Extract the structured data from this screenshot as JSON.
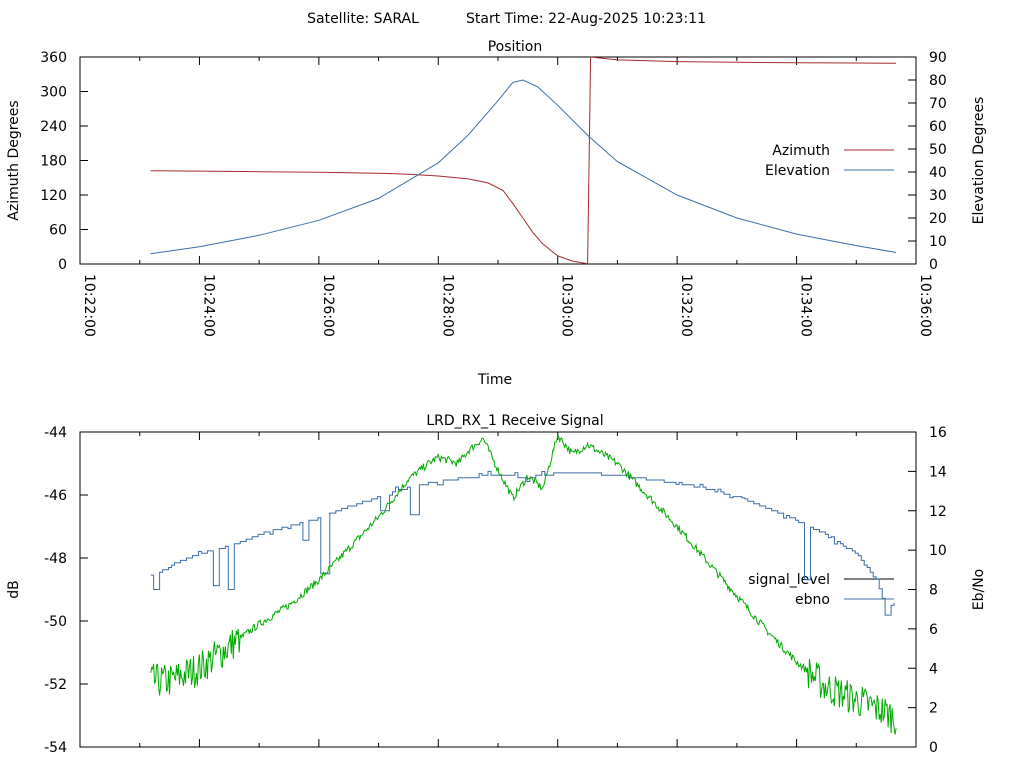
{
  "header": {
    "satellite": "Satellite: SARAL",
    "start_time": "Start Time: 22-Aug-2025 10:23:11"
  },
  "chart_data": [
    {
      "id": "position",
      "type": "line",
      "title": "Position",
      "xlabel": "Time",
      "ylabel": "Azimuth Degrees",
      "y2label": "Elevation Degrees",
      "xlim": [
        "10:22:00",
        "10:36:00"
      ],
      "ylim": [
        0,
        360
      ],
      "y2lim": [
        0,
        90
      ],
      "x_ticks": [
        "10:22:00",
        "10:24:00",
        "10:26:00",
        "10:28:00",
        "10:30:00",
        "10:32:00",
        "10:34:00",
        "10:36:00"
      ],
      "y_ticks": [
        "0",
        "60",
        "120",
        "180",
        "240",
        "300",
        "360"
      ],
      "y2_ticks": [
        "0",
        "10",
        "20",
        "30",
        "40",
        "50",
        "60",
        "70",
        "80",
        "90"
      ],
      "grid": false,
      "legend": "right",
      "series": [
        {
          "name": "Azimuth",
          "axis": "left",
          "color": "#a52a2a",
          "points": [
            [
              "10:23:11",
              162
            ],
            [
              "10:24:00",
              161.5
            ],
            [
              "10:25:00",
              160.5
            ],
            [
              "10:26:00",
              159.5
            ],
            [
              "10:27:00",
              158
            ],
            [
              "10:27:30",
              156
            ],
            [
              "10:28:00",
              153
            ],
            [
              "10:28:30",
              148
            ],
            [
              "10:28:50",
              141
            ],
            [
              "10:29:05",
              128
            ],
            [
              "10:29:15",
              105
            ],
            [
              "10:29:25",
              80
            ],
            [
              "10:29:35",
              55
            ],
            [
              "10:29:45",
              35
            ],
            [
              "10:30:00",
              14
            ],
            [
              "10:30:15",
              5
            ],
            [
              "10:30:30",
              0.5
            ],
            [
              "10:30:33",
              360
            ],
            [
              "10:31:00",
              355
            ],
            [
              "10:32:00",
              352
            ],
            [
              "10:33:00",
              351
            ],
            [
              "10:34:00",
              350
            ],
            [
              "10:35:00",
              349.5
            ],
            [
              "10:35:40",
              349
            ]
          ]
        },
        {
          "name": "Elevation",
          "axis": "right",
          "color": "#3b6fa8",
          "points": [
            [
              "10:23:11",
              4.5
            ],
            [
              "10:24:00",
              7.5
            ],
            [
              "10:25:00",
              12.5
            ],
            [
              "10:26:00",
              19
            ],
            [
              "10:27:00",
              28.5
            ],
            [
              "10:28:00",
              44
            ],
            [
              "10:28:30",
              56
            ],
            [
              "10:29:00",
              71
            ],
            [
              "10:29:15",
              79
            ],
            [
              "10:29:25",
              80
            ],
            [
              "10:29:40",
              77
            ],
            [
              "10:30:00",
              69
            ],
            [
              "10:30:30",
              56
            ],
            [
              "10:31:00",
              44.5
            ],
            [
              "10:32:00",
              30
            ],
            [
              "10:33:00",
              20
            ],
            [
              "10:34:00",
              13
            ],
            [
              "10:35:00",
              8
            ],
            [
              "10:35:40",
              5
            ]
          ]
        }
      ]
    },
    {
      "id": "receive",
      "type": "line",
      "title": "LRD_RX_1 Receive Signal",
      "xlabel": "",
      "ylabel": "dB",
      "y2label": "Eb/No",
      "xlim": [
        "10:22:00",
        "10:36:00"
      ],
      "ylim": [
        -54,
        -44
      ],
      "y2lim": [
        0,
        16
      ],
      "y_ticks": [
        "-54",
        "-52",
        "-50",
        "-48",
        "-46",
        "-44"
      ],
      "y2_ticks": [
        "0",
        "2",
        "4",
        "6",
        "8",
        "10",
        "12",
        "14",
        "16"
      ],
      "grid": false,
      "legend": "right",
      "series": [
        {
          "name": "signal_level",
          "axis": "left",
          "color": "#000000",
          "points": []
        },
        {
          "name": "ebno",
          "axis": "right",
          "color": "#3b6fa8",
          "points": [
            [
              "10:23:11",
              8.5
            ],
            [
              "10:23:30",
              9.2
            ],
            [
              "10:24:00",
              9.8
            ],
            [
              "10:24:30",
              10.2
            ],
            [
              "10:25:00",
              10.8
            ],
            [
              "10:25:30",
              11.2
            ],
            [
              "10:26:00",
              11.6
            ],
            [
              "10:26:30",
              12.2
            ],
            [
              "10:27:00",
              12.7
            ],
            [
              "10:27:30",
              13.2
            ],
            [
              "10:28:00",
              13.5
            ],
            [
              "10:28:30",
              13.7
            ],
            [
              "10:29:00",
              13.8
            ],
            [
              "10:29:30",
              13.7
            ],
            [
              "10:30:00",
              13.9
            ],
            [
              "10:30:30",
              13.9
            ],
            [
              "10:31:00",
              13.8
            ],
            [
              "10:31:30",
              13.6
            ],
            [
              "10:32:00",
              13.4
            ],
            [
              "10:32:30",
              13.1
            ],
            [
              "10:33:00",
              12.7
            ],
            [
              "10:33:30",
              12.1
            ],
            [
              "10:34:00",
              11.5
            ],
            [
              "10:34:30",
              10.8
            ],
            [
              "10:35:00",
              9.8
            ],
            [
              "10:35:20",
              8.5
            ],
            [
              "10:35:30",
              6.9
            ],
            [
              "10:35:40",
              7.4
            ]
          ],
          "dips": [
            [
              "10:23:15",
              8.0
            ],
            [
              "10:24:15",
              8.2
            ],
            [
              "10:24:30",
              8.0
            ],
            [
              "10:25:45",
              10.5
            ],
            [
              "10:26:05",
              8.8
            ],
            [
              "10:27:05",
              12.0
            ],
            [
              "10:27:35",
              11.8
            ],
            [
              "10:34:10",
              8.5
            ],
            [
              "10:35:30",
              6.7
            ]
          ]
        },
        {
          "name": "",
          "axis": "left",
          "color": "#00aa00",
          "points": [
            [
              "10:23:11",
              -51.9
            ],
            [
              "10:23:30",
              -51.9
            ],
            [
              "10:24:00",
              -51.5
            ],
            [
              "10:24:30",
              -50.8
            ],
            [
              "10:25:00",
              -50.1
            ],
            [
              "10:25:30",
              -49.5
            ],
            [
              "10:26:00",
              -48.7
            ],
            [
              "10:26:30",
              -47.7
            ],
            [
              "10:27:00",
              -46.7
            ],
            [
              "10:27:30",
              -45.5
            ],
            [
              "10:27:50",
              -45.0
            ],
            [
              "10:28:00",
              -44.8
            ],
            [
              "10:28:20",
              -45.0
            ],
            [
              "10:28:30",
              -44.6
            ],
            [
              "10:28:45",
              -44.2
            ],
            [
              "10:29:00",
              -45.2
            ],
            [
              "10:29:15",
              -46.1
            ],
            [
              "10:29:30",
              -45.4
            ],
            [
              "10:29:45",
              -45.8
            ],
            [
              "10:30:00",
              -44.1
            ],
            [
              "10:30:15",
              -44.7
            ],
            [
              "10:30:30",
              -44.4
            ],
            [
              "10:31:00",
              -45.0
            ],
            [
              "10:31:30",
              -46.0
            ],
            [
              "10:32:00",
              -47.0
            ],
            [
              "10:32:30",
              -48.1
            ],
            [
              "10:33:00",
              -49.2
            ],
            [
              "10:33:30",
              -50.3
            ],
            [
              "10:34:00",
              -51.3
            ],
            [
              "10:34:30",
              -52.1
            ],
            [
              "10:35:00",
              -52.5
            ],
            [
              "10:35:30",
              -52.9
            ],
            [
              "10:35:40",
              -53.1
            ]
          ]
        }
      ]
    }
  ]
}
